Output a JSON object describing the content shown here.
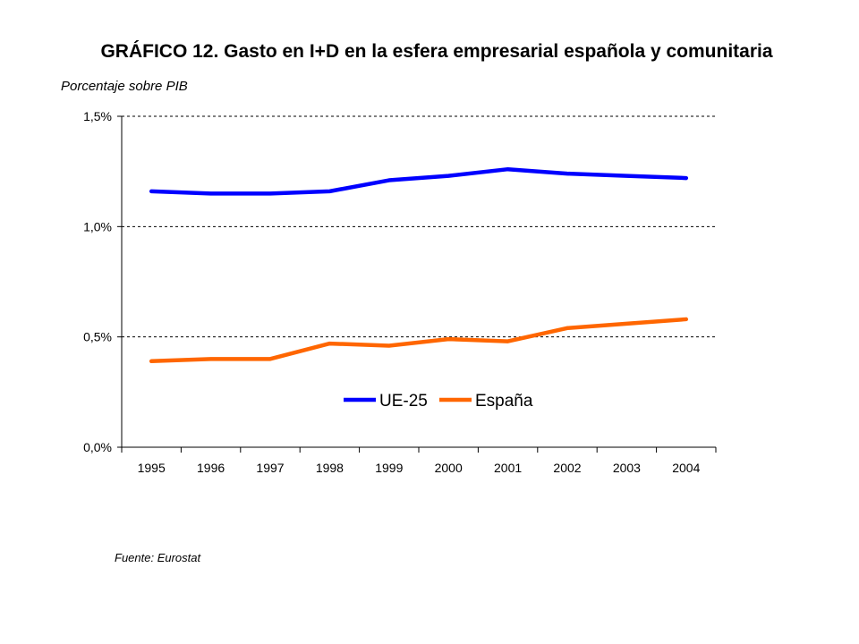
{
  "chart_data": {
    "type": "line",
    "title": "GRÁFICO 12. Gasto en I+D en la esfera empresarial española y comunitaria",
    "ylabel": "Porcentaje sobre PIB",
    "xlabel": "",
    "source": "Fuente: Eurostat",
    "categories": [
      "1995",
      "1996",
      "1997",
      "1998",
      "1999",
      "2000",
      "2001",
      "2002",
      "2003",
      "2004"
    ],
    "yticks": [
      0,
      0.5,
      1.0,
      1.5
    ],
    "ytick_labels": [
      "0,0%",
      "0,5%",
      "1,0%",
      "1,5%"
    ],
    "ylim": [
      0,
      1.5
    ],
    "grid": "horizontal dashed",
    "legend_position": "bottom-center",
    "series": [
      {
        "name": "UE-25",
        "color": "#0000FF",
        "values": [
          1.16,
          1.15,
          1.15,
          1.16,
          1.21,
          1.23,
          1.26,
          1.24,
          1.23,
          1.22
        ]
      },
      {
        "name": "España",
        "color": "#FF6600",
        "values": [
          0.39,
          0.4,
          0.4,
          0.47,
          0.46,
          0.49,
          0.48,
          0.54,
          0.56,
          0.58
        ]
      }
    ]
  }
}
